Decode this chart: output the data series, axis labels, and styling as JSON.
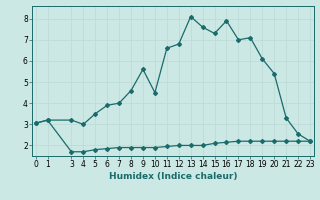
{
  "xlabel": "Humidex (Indice chaleur)",
  "bg_color": "#cce8e4",
  "line_color": "#1a6b6b",
  "grid_color": "#c0dcd8",
  "x_upper_line": [
    0,
    1,
    3,
    4,
    5,
    6,
    7,
    8,
    9,
    10,
    11,
    12,
    13,
    14,
    15,
    16,
    17,
    18,
    19,
    20,
    21,
    22,
    23
  ],
  "y_upper_line": [
    3.05,
    3.2,
    3.2,
    3.0,
    3.5,
    3.9,
    4.0,
    4.6,
    5.6,
    4.5,
    6.6,
    6.8,
    8.1,
    7.6,
    7.3,
    7.9,
    7.0,
    7.1,
    6.1,
    5.4,
    3.3,
    2.55,
    2.2
  ],
  "x_lower_line": [
    0,
    1,
    3,
    4,
    5,
    6,
    7,
    8,
    9,
    10,
    11,
    12,
    13,
    14,
    15,
    16,
    17,
    18,
    19,
    20,
    21,
    22,
    23
  ],
  "y_lower_line": [
    3.05,
    3.2,
    1.7,
    1.7,
    1.8,
    1.85,
    1.9,
    1.9,
    1.9,
    1.9,
    1.95,
    2.0,
    2.0,
    2.0,
    2.1,
    2.15,
    2.2,
    2.2,
    2.2,
    2.2,
    2.2,
    2.2,
    2.2
  ],
  "ylim": [
    1.5,
    8.6
  ],
  "xlim": [
    -0.3,
    23.3
  ],
  "yticks": [
    2,
    3,
    4,
    5,
    6,
    7,
    8
  ],
  "xticks": [
    0,
    1,
    3,
    4,
    5,
    6,
    7,
    8,
    9,
    10,
    11,
    12,
    13,
    14,
    15,
    16,
    17,
    18,
    19,
    20,
    21,
    22,
    23
  ],
  "tick_fontsize": 5.5,
  "xlabel_fontsize": 6.5
}
